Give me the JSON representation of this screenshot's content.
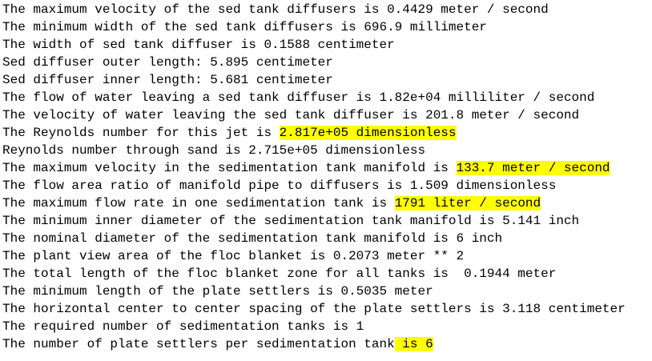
{
  "lines": [
    {
      "text": "The maximum velocity of the sed tank diffusers is 0.4429 meter / second"
    },
    {
      "text": "The minimum width of the sed tank diffusers is 696.9 millimeter"
    },
    {
      "text": "The width of sed tank diffuser is 0.1588 centimeter"
    },
    {
      "text": "Sed diffuser outer length: 5.895 centimeter"
    },
    {
      "text": "Sed diffuser inner length: 5.681 centimeter"
    },
    {
      "text": "The flow of water leaving a sed tank diffuser is 1.82e+04 milliliter / second"
    },
    {
      "text": "The velocity of water leaving the sed tank diffuser is 201.8 meter / second"
    },
    {
      "text": "The Reynolds number for this jet is ",
      "highlighted": "2.817e+05 dimensionless"
    },
    {
      "text": "Reynolds number through sand is 2.715e+05 dimensionless"
    },
    {
      "text": "The maximum velocity in the sedimentation tank manifold is ",
      "highlighted": "133.7 meter / second"
    },
    {
      "text": "The flow area ratio of manifold pipe to diffusers is 1.509 dimensionless"
    },
    {
      "text": "The maximum flow rate in one sedimentation tank is ",
      "highlighted": "1791 liter / second"
    },
    {
      "text": "The minimum inner diameter of the sedimentation tank manifold is 5.141 inch"
    },
    {
      "text": "The nominal diameter of the sedimentation tank manifold is 6 inch"
    },
    {
      "text": "The plant view area of the floc blanket is 0.2073 meter ** 2"
    },
    {
      "text": "The total length of the floc blanket zone for all tanks is  0.1944 meter"
    },
    {
      "text": "The minimum length of the plate settlers is 0.5035 meter"
    },
    {
      "text": "The horizontal center to center spacing of the plate settlers is 3.118 centimeter"
    },
    {
      "text": "The required number of sedimentation tanks is 1"
    },
    {
      "text": "The number of plate settlers per sedimentation tank",
      "highlighted": " is 6"
    }
  ]
}
